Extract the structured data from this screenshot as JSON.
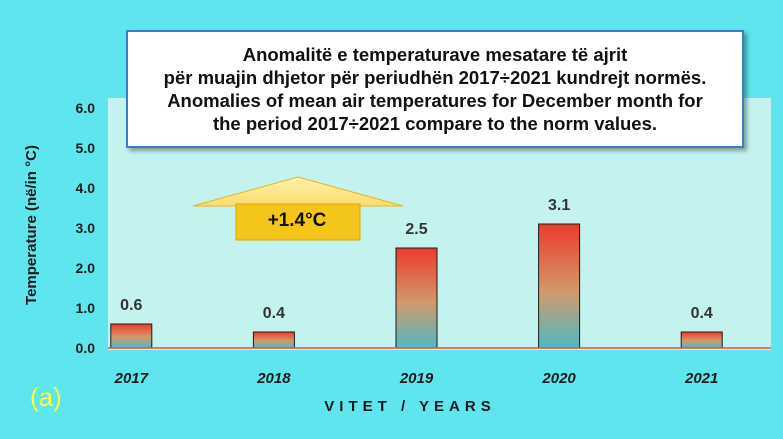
{
  "chart_data": {
    "type": "bar",
    "title_lines": [
      "Anomalitë e temperaturave mesatare të ajrit",
      "për muajin dhjetor për periudhën 2017÷2021 kundrejt normës.",
      "Anomalies of mean air temperatures for December month for",
      "the period 2017÷2021 compare to the norm values."
    ],
    "categories": [
      "2017",
      "2018",
      "2019",
      "2020",
      "2021"
    ],
    "values": [
      0.6,
      0.4,
      2.5,
      3.1,
      0.4
    ],
    "data_labels": [
      "0.6",
      "0.4",
      "2.5",
      "3.1",
      "0.4"
    ],
    "ylabel": "Temperature (në/in °C)",
    "xlabel": "VITET / YEARS",
    "ylim": [
      0,
      6
    ],
    "yticks": [
      "0.0",
      "1.0",
      "2.0",
      "3.0",
      "4.0",
      "5.0",
      "6.0"
    ],
    "annotation": "+1.4°C",
    "panel_label": "(a)",
    "grid": false,
    "colors": {
      "bar_top": "#ee3b2c",
      "bar_mid": "#d89262",
      "bar_bottom": "#4fb9c4",
      "bar_border": "#1a1a1a",
      "axis_line": "#f04a3a",
      "arrow": "#f5c61a",
      "annotation_box": "#f5c61a"
    }
  }
}
